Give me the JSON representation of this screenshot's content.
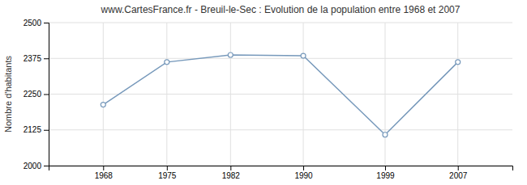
{
  "chart_data": {
    "type": "line",
    "title": "www.CartesFrance.fr - Breuil-le-Sec : Evolution de la population entre 1968 et 2007",
    "ylabel": "Nombre d'habitants",
    "x": [
      1968,
      1975,
      1982,
      1990,
      1999,
      2007
    ],
    "values": [
      2213,
      2362,
      2387,
      2384,
      2108,
      2362
    ],
    "color": "#7799bb",
    "marker": "circle",
    "xlim": [
      1962,
      2013
    ],
    "xticks": [
      1968,
      1975,
      1982,
      1990,
      1999,
      2007
    ],
    "ylim": [
      2000,
      2500
    ],
    "yticks": [
      2000,
      2125,
      2250,
      2375,
      2500
    ],
    "grid": true
  }
}
